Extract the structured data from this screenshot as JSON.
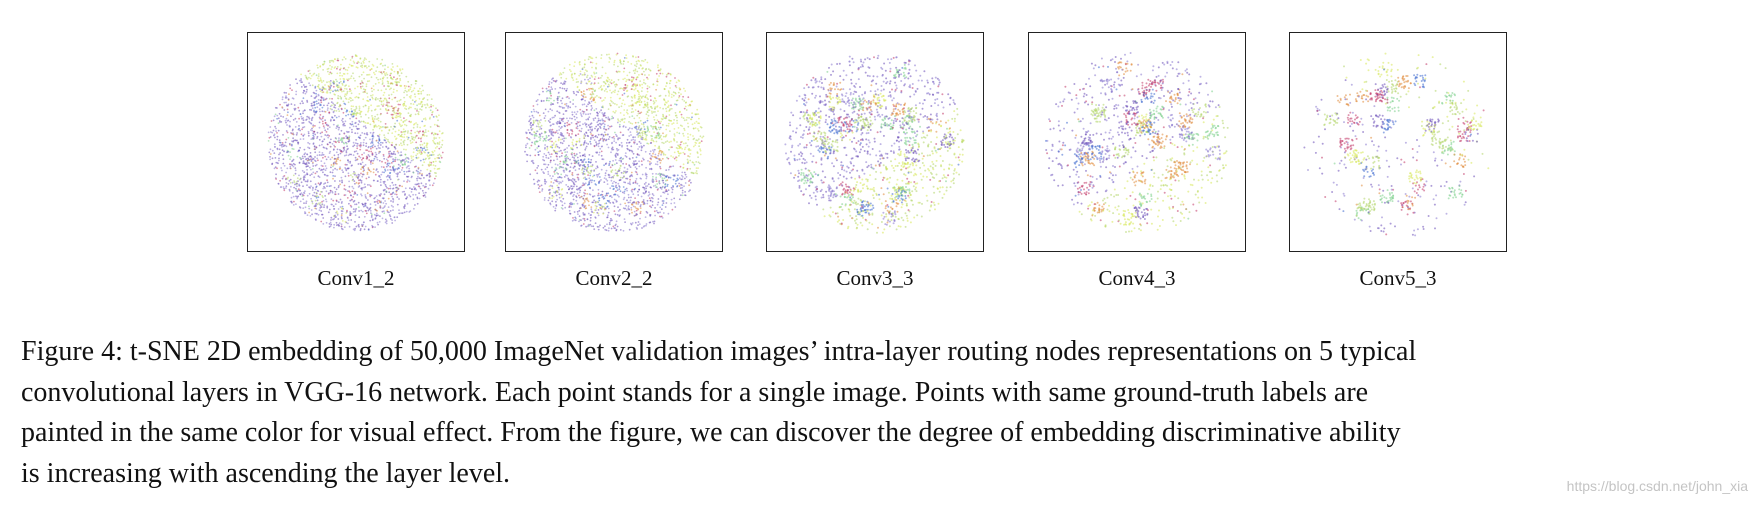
{
  "figure": {
    "panels": [
      {
        "label": "Conv1_2"
      },
      {
        "label": "Conv2_2"
      },
      {
        "label": "Conv3_3"
      },
      {
        "label": "Conv4_3"
      },
      {
        "label": "Conv5_3"
      }
    ],
    "palette": [
      "#6b4fb8",
      "#8a7ad0",
      "#b3d66a",
      "#d7e85a",
      "#c23a6a",
      "#3f6bd0",
      "#7bd08a",
      "#e08a3a"
    ],
    "caption_lines": [
      "Figure 4: t-SNE 2D embedding of 50,000 ImageNet validation images’ intra-layer routing nodes representations on 5 typical",
      "convolutional layers in VGG-16 network. Each point stands for a single image. Points with same ground-truth labels are",
      "painted in the same color for visual effect. From the figure, we can discover the degree of embedding discriminative ability",
      "is increasing with ascending the layer level."
    ],
    "watermark": "https://blog.csdn.net/john_xia"
  }
}
